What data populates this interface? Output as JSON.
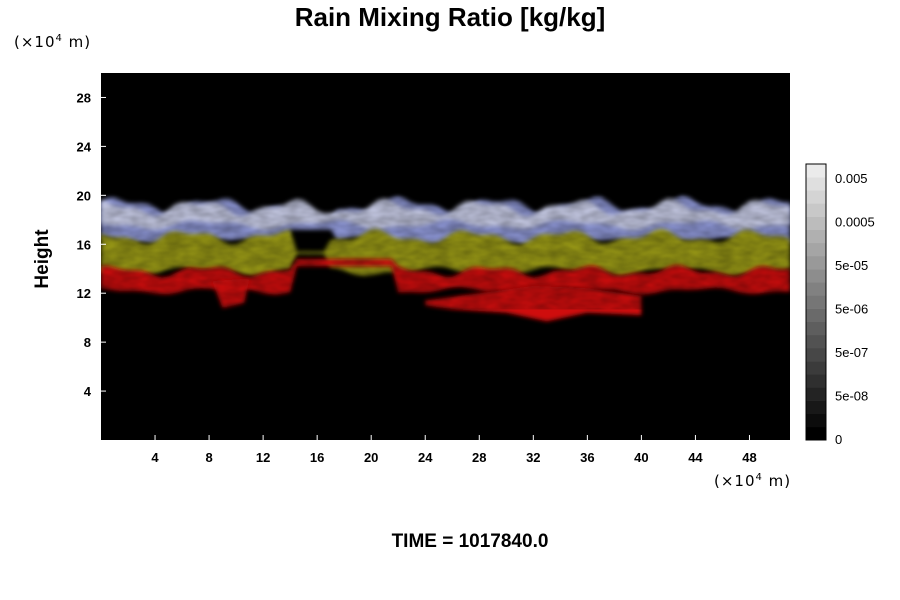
{
  "chart_data": {
    "type": "heatmap",
    "title": "Rain Mixing Ratio [kg/kg]",
    "ylabel": "Height",
    "xlabel": "",
    "x_unit": "(×10",
    "x_unit_exp": "4",
    "x_unit_tail": " m)",
    "y_unit": "(×10",
    "y_unit_exp": "4",
    "y_unit_tail": " m)",
    "x_ticks": [
      4,
      8,
      12,
      16,
      20,
      24,
      28,
      32,
      36,
      40,
      44,
      48
    ],
    "y_ticks": [
      4,
      8,
      12,
      16,
      20,
      24,
      28
    ],
    "xlim": [
      0,
      51
    ],
    "ylim": [
      0,
      30
    ],
    "colorbar": {
      "tick_labels": [
        "0.005",
        "0.0005",
        "5e-05",
        "5e-06",
        "5e-07",
        "5e-08",
        "0"
      ],
      "levels": 21
    },
    "bands": {
      "blue_top": 19.2,
      "yellow_top": 16.6,
      "red_top": 13.8,
      "cloud_base": 12.2
    },
    "colors": {
      "background": "#000000",
      "blue": "#8f98d8",
      "pale": "#c9cde8",
      "yellow": "#9a9a12",
      "red": "#cf0a0a"
    },
    "footer": "TIME = 1017840.0"
  }
}
